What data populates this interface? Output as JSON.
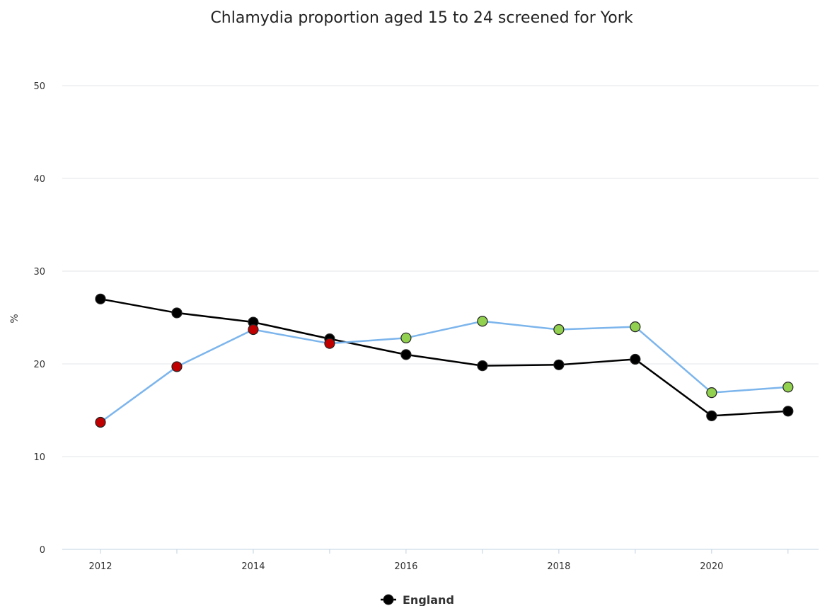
{
  "chart_data": {
    "type": "line",
    "title": "Chlamydia proportion aged 15 to 24 screened for York",
    "ylabel": "%",
    "xlabel": "",
    "ylim": [
      0,
      50
    ],
    "yticks": [
      0,
      10,
      20,
      30,
      40,
      50
    ],
    "xlim": [
      2011.5,
      2021.4
    ],
    "x": [
      2012,
      2013,
      2014,
      2015,
      2016,
      2017,
      2018,
      2019,
      2020,
      2021
    ],
    "xtick_labels": [
      2012,
      2014,
      2016,
      2018,
      2020
    ],
    "grid": true,
    "legend_position": "bottom-center",
    "series": [
      {
        "name": "England",
        "legend": true,
        "line_color": "#000000",
        "values": [
          27.0,
          25.5,
          24.5,
          22.7,
          21.0,
          19.8,
          19.9,
          20.5,
          14.4,
          14.9
        ],
        "marker_colors": [
          "#000000",
          "#000000",
          "#000000",
          "#000000",
          "#000000",
          "#000000",
          "#000000",
          "#000000",
          "#000000",
          "#000000"
        ]
      },
      {
        "legend": false,
        "line_color": "#7cb5ec",
        "values": [
          13.7,
          19.7,
          23.7,
          22.2,
          22.8,
          24.6,
          23.7,
          24.0,
          16.9,
          17.5
        ],
        "marker_colors": [
          "#c00000",
          "#c00000",
          "#c00000",
          "#c00000",
          "#92d050",
          "#92d050",
          "#92d050",
          "#92d050",
          "#92d050",
          "#92d050"
        ]
      }
    ]
  }
}
